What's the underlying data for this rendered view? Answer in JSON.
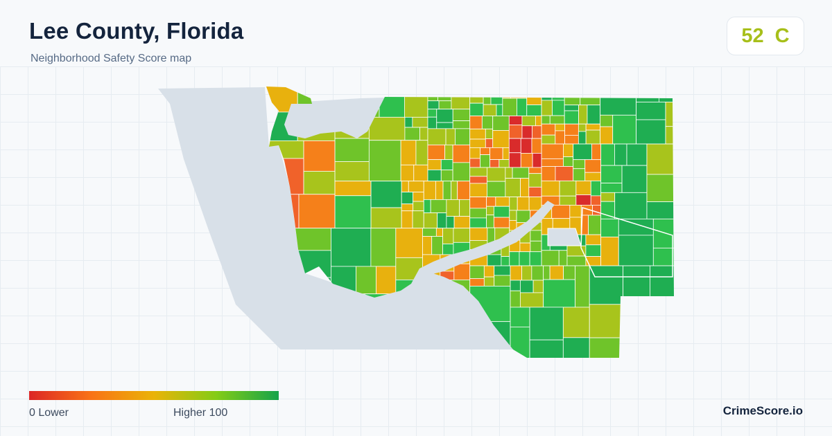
{
  "header": {
    "title": "Lee County, Florida",
    "subtitle": "Neighborhood Safety Score map"
  },
  "score": {
    "value": "52",
    "grade": "C",
    "color": "#a7bf1a"
  },
  "map": {
    "water_color": "#d8e0e8",
    "palette": [
      "#d92b2b",
      "#f0622a",
      "#f5801a",
      "#e8b10e",
      "#a8c41c",
      "#6fc42a",
      "#2fc04e",
      "#1fae52"
    ]
  },
  "legend": {
    "low_label": "0  Lower",
    "high_label": "Higher  100",
    "gradient": [
      "#dc2626",
      "#f97316",
      "#eab308",
      "#84cc16",
      "#16a34a"
    ]
  },
  "brand": {
    "name": "CrimeScore.io"
  }
}
